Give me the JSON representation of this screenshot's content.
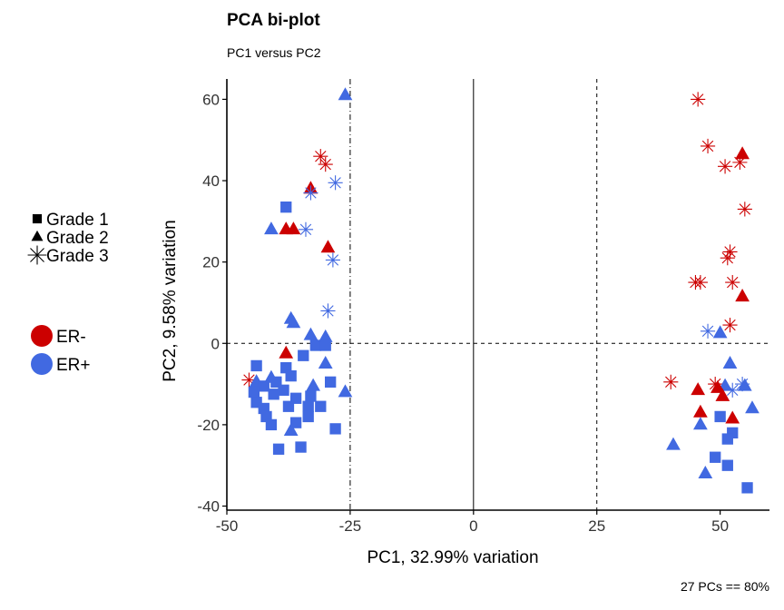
{
  "chart_data": {
    "type": "scatter",
    "title": "PCA bi-plot",
    "subtitle": "PC1 versus PC2",
    "xlabel": "PC1, 32.99% variation",
    "ylabel": "PC2, 9.58% variation",
    "caption": "27 PCs == 80%",
    "xlim": [
      -50,
      60
    ],
    "ylim": [
      -41,
      65
    ],
    "xticks": [
      -50,
      -25,
      0,
      25,
      50
    ],
    "yticks": [
      -40,
      -20,
      0,
      20,
      40,
      60
    ],
    "grid": false,
    "reference_lines": [
      {
        "axis": "x",
        "value": 0,
        "style": "solid"
      },
      {
        "axis": "y",
        "value": 0,
        "style": "dashed"
      },
      {
        "axis": "x",
        "value": -25,
        "style": "dashdot"
      },
      {
        "axis": "x",
        "value": 25,
        "style": "dashed"
      }
    ],
    "legend_shape": {
      "position": "left",
      "entries": [
        {
          "label": "Grade 1",
          "shape": "square"
        },
        {
          "label": "Grade 2",
          "shape": "triangle"
        },
        {
          "label": "Grade 3",
          "shape": "asterisk"
        }
      ]
    },
    "legend_color": {
      "position": "left",
      "entries": [
        {
          "label": "ER-",
          "color": "#cc0000"
        },
        {
          "label": "ER+",
          "color": "#4169e1"
        }
      ]
    },
    "points": [
      {
        "x": -26,
        "y": 61,
        "shape": "triangle",
        "group": "ER+"
      },
      {
        "x": -31,
        "y": 46,
        "shape": "asterisk",
        "group": "ER-"
      },
      {
        "x": -30,
        "y": 44,
        "shape": "asterisk",
        "group": "ER-"
      },
      {
        "x": -33,
        "y": 38,
        "shape": "triangle",
        "group": "ER-"
      },
      {
        "x": -33,
        "y": 37,
        "shape": "asterisk",
        "group": "ER+"
      },
      {
        "x": -28,
        "y": 39.5,
        "shape": "asterisk",
        "group": "ER+"
      },
      {
        "x": -38,
        "y": 33.5,
        "shape": "square",
        "group": "ER+"
      },
      {
        "x": -41,
        "y": 28,
        "shape": "triangle",
        "group": "ER+"
      },
      {
        "x": -38,
        "y": 28,
        "shape": "triangle",
        "group": "ER-"
      },
      {
        "x": -36.5,
        "y": 28,
        "shape": "triangle",
        "group": "ER-"
      },
      {
        "x": -34,
        "y": 28,
        "shape": "asterisk",
        "group": "ER+"
      },
      {
        "x": -29.5,
        "y": 23.5,
        "shape": "triangle",
        "group": "ER-"
      },
      {
        "x": -28.5,
        "y": 20.5,
        "shape": "asterisk",
        "group": "ER+"
      },
      {
        "x": -29.5,
        "y": 8,
        "shape": "asterisk",
        "group": "ER+"
      },
      {
        "x": -37,
        "y": 6,
        "shape": "triangle",
        "group": "ER+"
      },
      {
        "x": -36.5,
        "y": 5,
        "shape": "triangle",
        "group": "ER+"
      },
      {
        "x": -33,
        "y": 2,
        "shape": "triangle",
        "group": "ER+"
      },
      {
        "x": -30,
        "y": 1.5,
        "shape": "triangle",
        "group": "ER+"
      },
      {
        "x": -32,
        "y": -0.5,
        "shape": "square",
        "group": "ER+"
      },
      {
        "x": -30,
        "y": -0.5,
        "shape": "square",
        "group": "ER+"
      },
      {
        "x": -38,
        "y": -2.5,
        "shape": "triangle",
        "group": "ER-"
      },
      {
        "x": -34.5,
        "y": -3,
        "shape": "square",
        "group": "ER+"
      },
      {
        "x": -30,
        "y": -5,
        "shape": "triangle",
        "group": "ER+"
      },
      {
        "x": -44,
        "y": -5.5,
        "shape": "square",
        "group": "ER+"
      },
      {
        "x": -38,
        "y": -6,
        "shape": "square",
        "group": "ER+"
      },
      {
        "x": -37,
        "y": -8,
        "shape": "square",
        "group": "ER+"
      },
      {
        "x": -41,
        "y": -8.5,
        "shape": "triangle",
        "group": "ER+"
      },
      {
        "x": -45.5,
        "y": -9,
        "shape": "asterisk",
        "group": "ER-"
      },
      {
        "x": -44,
        "y": -9.5,
        "shape": "triangle",
        "group": "ER+"
      },
      {
        "x": -40,
        "y": -9.5,
        "shape": "square",
        "group": "ER+"
      },
      {
        "x": -42.5,
        "y": -10.5,
        "shape": "square",
        "group": "ER+"
      },
      {
        "x": -29,
        "y": -9.5,
        "shape": "square",
        "group": "ER+"
      },
      {
        "x": -32.5,
        "y": -10.5,
        "shape": "triangle",
        "group": "ER+"
      },
      {
        "x": -38.5,
        "y": -11.5,
        "shape": "square",
        "group": "ER+"
      },
      {
        "x": -44.5,
        "y": -12,
        "shape": "square",
        "group": "ER+"
      },
      {
        "x": -26,
        "y": -12,
        "shape": "triangle",
        "group": "ER+"
      },
      {
        "x": -40.5,
        "y": -12.5,
        "shape": "square",
        "group": "ER+"
      },
      {
        "x": -33,
        "y": -13,
        "shape": "square",
        "group": "ER+"
      },
      {
        "x": -36,
        "y": -13.5,
        "shape": "square",
        "group": "ER+"
      },
      {
        "x": -44,
        "y": -14.5,
        "shape": "square",
        "group": "ER+"
      },
      {
        "x": -42.5,
        "y": -16,
        "shape": "square",
        "group": "ER+"
      },
      {
        "x": -37.5,
        "y": -15.5,
        "shape": "square",
        "group": "ER+"
      },
      {
        "x": -33.5,
        "y": -15.5,
        "shape": "square",
        "group": "ER+"
      },
      {
        "x": -31,
        "y": -15.5,
        "shape": "square",
        "group": "ER+"
      },
      {
        "x": -42,
        "y": -18,
        "shape": "square",
        "group": "ER+"
      },
      {
        "x": -33.5,
        "y": -18,
        "shape": "square",
        "group": "ER+"
      },
      {
        "x": -41,
        "y": -20,
        "shape": "square",
        "group": "ER+"
      },
      {
        "x": -36,
        "y": -19.5,
        "shape": "square",
        "group": "ER+"
      },
      {
        "x": -37,
        "y": -21.5,
        "shape": "triangle",
        "group": "ER+"
      },
      {
        "x": -28,
        "y": -21,
        "shape": "square",
        "group": "ER+"
      },
      {
        "x": -39.5,
        "y": -26,
        "shape": "square",
        "group": "ER+"
      },
      {
        "x": -35,
        "y": -25.5,
        "shape": "square",
        "group": "ER+"
      },
      {
        "x": 45.5,
        "y": 60,
        "shape": "asterisk",
        "group": "ER-"
      },
      {
        "x": 47.5,
        "y": 48.5,
        "shape": "asterisk",
        "group": "ER-"
      },
      {
        "x": 54.5,
        "y": 46.5,
        "shape": "triangle",
        "group": "ER-"
      },
      {
        "x": 54,
        "y": 44.5,
        "shape": "asterisk",
        "group": "ER-"
      },
      {
        "x": 51,
        "y": 43.5,
        "shape": "asterisk",
        "group": "ER-"
      },
      {
        "x": 55,
        "y": 33,
        "shape": "asterisk",
        "group": "ER-"
      },
      {
        "x": 52,
        "y": 22.5,
        "shape": "asterisk",
        "group": "ER-"
      },
      {
        "x": 51.5,
        "y": 21,
        "shape": "asterisk",
        "group": "ER-"
      },
      {
        "x": 45,
        "y": 15,
        "shape": "asterisk",
        "group": "ER-"
      },
      {
        "x": 46,
        "y": 15,
        "shape": "asterisk",
        "group": "ER-"
      },
      {
        "x": 52.5,
        "y": 15,
        "shape": "asterisk",
        "group": "ER-"
      },
      {
        "x": 54.5,
        "y": 11.5,
        "shape": "triangle",
        "group": "ER-"
      },
      {
        "x": 52,
        "y": 4.5,
        "shape": "asterisk",
        "group": "ER-"
      },
      {
        "x": 47.5,
        "y": 3,
        "shape": "asterisk",
        "group": "ER+"
      },
      {
        "x": 50,
        "y": 2.5,
        "shape": "triangle",
        "group": "ER+"
      },
      {
        "x": 52,
        "y": -5,
        "shape": "triangle",
        "group": "ER+"
      },
      {
        "x": 40,
        "y": -9.5,
        "shape": "asterisk",
        "group": "ER-"
      },
      {
        "x": 49,
        "y": -10,
        "shape": "asterisk",
        "group": "ER-"
      },
      {
        "x": 51,
        "y": -10.5,
        "shape": "triangle",
        "group": "ER+"
      },
      {
        "x": 54.5,
        "y": -10,
        "shape": "asterisk",
        "group": "ER+"
      },
      {
        "x": 55,
        "y": -10.5,
        "shape": "triangle",
        "group": "ER+"
      },
      {
        "x": 45.5,
        "y": -11.5,
        "shape": "triangle",
        "group": "ER-"
      },
      {
        "x": 49.5,
        "y": -11,
        "shape": "triangle",
        "group": "ER-"
      },
      {
        "x": 52.5,
        "y": -11.5,
        "shape": "asterisk",
        "group": "ER+"
      },
      {
        "x": 50.5,
        "y": -13,
        "shape": "triangle",
        "group": "ER-"
      },
      {
        "x": 56.5,
        "y": -16,
        "shape": "triangle",
        "group": "ER+"
      },
      {
        "x": 46,
        "y": -17,
        "shape": "triangle",
        "group": "ER-"
      },
      {
        "x": 50,
        "y": -18,
        "shape": "square",
        "group": "ER+"
      },
      {
        "x": 52.5,
        "y": -18.5,
        "shape": "triangle",
        "group": "ER-"
      },
      {
        "x": 46,
        "y": -20,
        "shape": "triangle",
        "group": "ER+"
      },
      {
        "x": 52.5,
        "y": -22,
        "shape": "square",
        "group": "ER+"
      },
      {
        "x": 51.5,
        "y": -23.5,
        "shape": "square",
        "group": "ER+"
      },
      {
        "x": 40.5,
        "y": -25,
        "shape": "triangle",
        "group": "ER+"
      },
      {
        "x": 49,
        "y": -28,
        "shape": "square",
        "group": "ER+"
      },
      {
        "x": 51.5,
        "y": -30,
        "shape": "square",
        "group": "ER+"
      },
      {
        "x": 47,
        "y": -32,
        "shape": "triangle",
        "group": "ER+"
      },
      {
        "x": 55.5,
        "y": -35.5,
        "shape": "square",
        "group": "ER+"
      }
    ]
  }
}
